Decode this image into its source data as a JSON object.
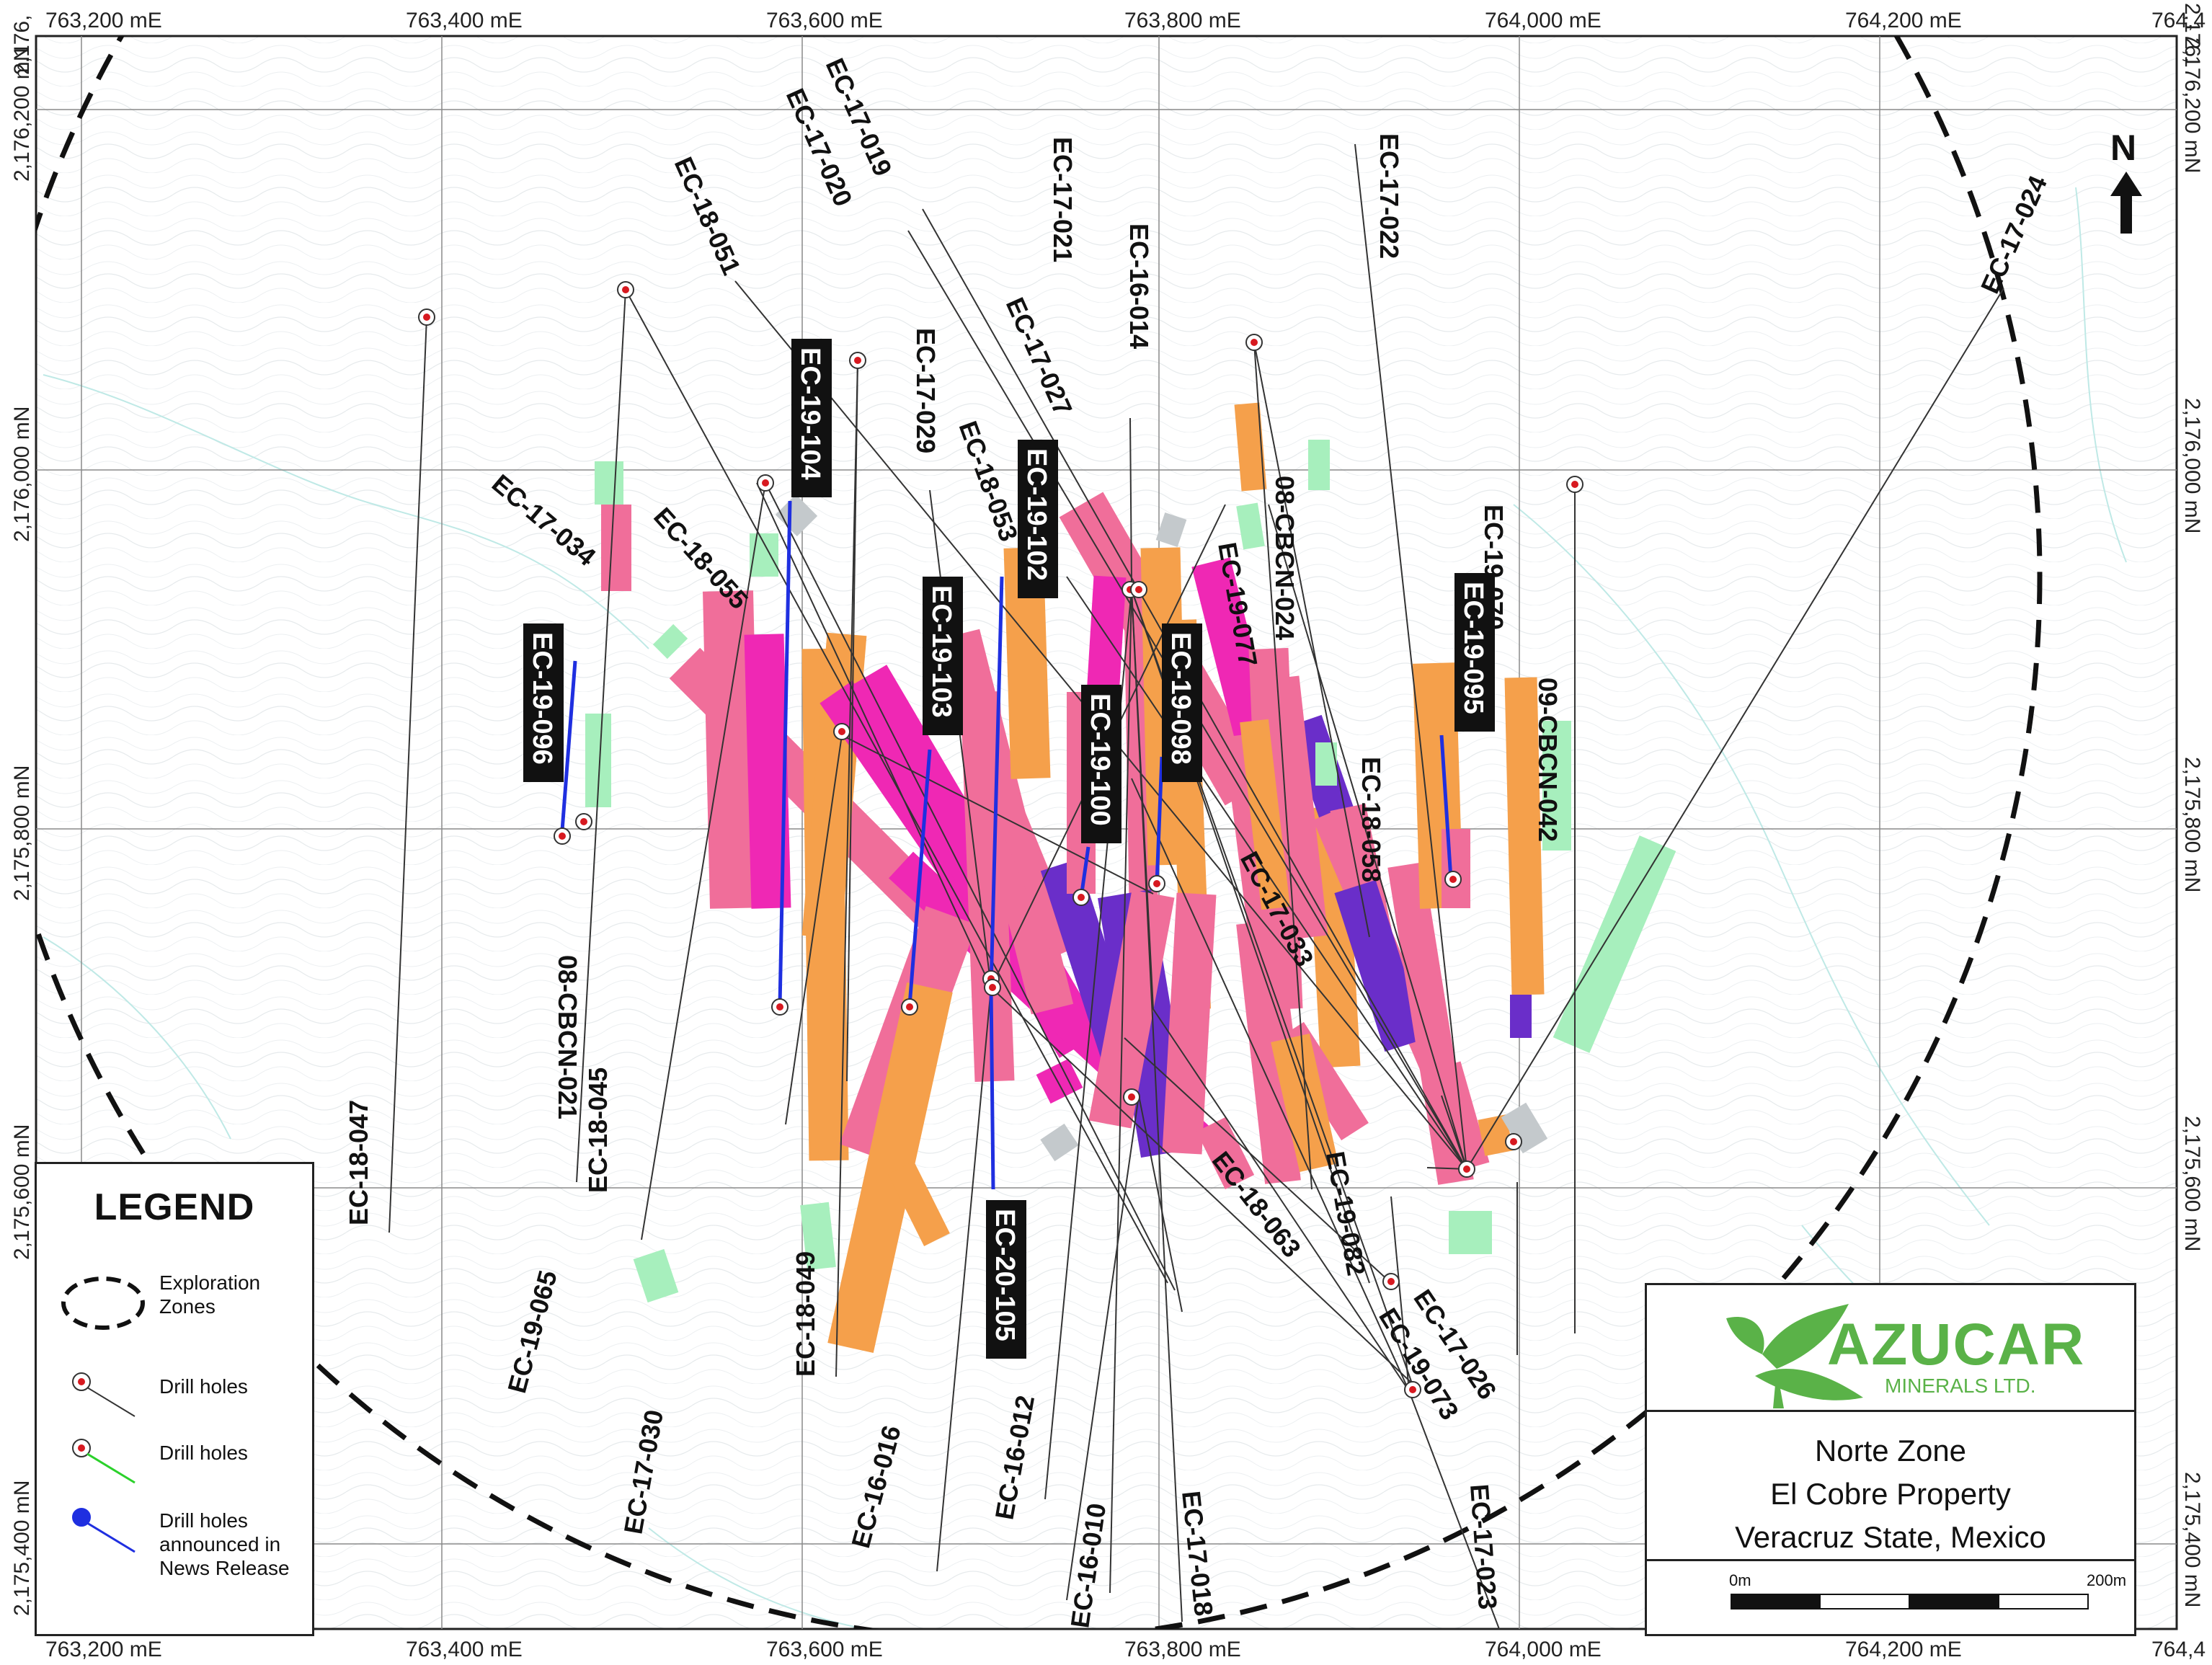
{
  "easting_labels": [
    "763,200 mE",
    "763,400 mE",
    "763,600 mE",
    "763,800 mE",
    "764,000 mE",
    "764,200 mE",
    "764,4"
  ],
  "northing_left": [
    "2,176,200 mN",
    "2,176,000 mN",
    "2,175,800 mN",
    "2,175,600 mN",
    "2,175,400 mN"
  ],
  "northing_right": [
    "2,176,200 mN",
    "2,176,000 mN",
    "2,175,800 mN",
    "2,175,600 mN",
    "2,175,400 mN"
  ],
  "northing_top_partial": [
    "2,176,",
    "2,176,"
  ],
  "north_arrow": {
    "label": "N",
    "icon": "north-arrow-icon"
  },
  "colors": {
    "intercept_orange": "#f5a04b",
    "intercept_pink": "#f06e9a",
    "intercept_magenta": "#ef28b4",
    "intercept_purple": "#6a2ec9",
    "intercept_green": "#a7efbd",
    "intercept_grey": "#c4c9cc",
    "highlight_trace": "#1f2fe0",
    "hole_trace": "#333333",
    "collar_marker": "#d71920",
    "brand_green": "#5ab248"
  },
  "drill_holes": [
    "EC-17-019",
    "EC-17-020",
    "EC-18-051",
    "EC-17-021",
    "EC-16-014",
    "EC-17-022",
    "EC-17-024",
    "EC-17-027",
    "EC-17-029",
    "EC-18-053",
    "EC-17-034",
    "EC-18-055",
    "08-CBCN-024",
    "EC-19-077",
    "EC-19-070",
    "09-CBCN-042",
    "EC-18-058",
    "EC-17-033",
    "08-CBCN-021",
    "EC-18-045",
    "EC-18-047",
    "EC-19-065",
    "EC-17-030",
    "EC-18-049",
    "EC-16-016",
    "EC-16-012",
    "EC-16-010",
    "EC-17-018",
    "EC-17-023",
    "EC-18-063",
    "EC-19-082",
    "EC-17-026",
    "EC-19-073"
  ],
  "highlighted_holes": [
    "EC-19-104",
    "EC-19-102",
    "EC-19-103",
    "EC-19-098",
    "EC-19-100",
    "EC-19-095",
    "EC-19-096",
    "EC-20-105"
  ],
  "legend": {
    "title": "LEGEND",
    "items": [
      {
        "label": "Exploration Zones",
        "icon": "dashed-ellipse-icon"
      },
      {
        "label": "Drill holes",
        "icon": "drill-hole-black-icon"
      },
      {
        "label": "Drill holes",
        "icon": "drill-hole-green-icon"
      },
      {
        "label": "Drill holes announced in News Release",
        "icon": "drill-hole-blue-icon"
      }
    ]
  },
  "title_block": {
    "company": "AZUCAR",
    "company_sub": "MINERALS LTD.",
    "line1": "Norte Zone",
    "line2": "El Cobre Property",
    "line3": "Veracruz State, Mexico"
  },
  "scale": {
    "start": "0m",
    "end": "200m"
  }
}
